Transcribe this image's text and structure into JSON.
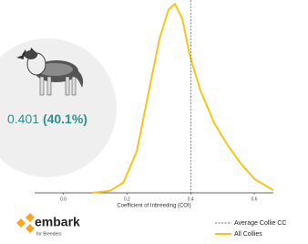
{
  "chart_data": {
    "type": "line",
    "x_label": "Coefficient of Inbreeding (COI)",
    "x": [
      0.09,
      0.146,
      0.189,
      0.231,
      0.269,
      0.303,
      0.331,
      0.351,
      0.374,
      0.397,
      0.431,
      0.474,
      0.517,
      0.56,
      0.603,
      0.66
    ],
    "series": [
      {
        "name": "All Collies",
        "color": "#f5c518",
        "values": [
          0,
          0.05,
          0.27,
          1.1,
          2.7,
          4.1,
          4.85,
          5.0,
          4.6,
          3.65,
          2.7,
          1.85,
          1.25,
          0.75,
          0.35,
          0.07
        ]
      }
    ],
    "reference_line": {
      "name": "Average Collie CC",
      "value": 0.401,
      "color": "#4a6fa5"
    },
    "xlim": [
      -0.09,
      0.66
    ],
    "ylim": [
      0,
      5.1
    ],
    "xticks": [
      {
        "value": 0,
        "label": "0.0"
      },
      0.2,
      0.4,
      0.6
    ]
  },
  "stat": {
    "value": "0.401",
    "percent": "(40.1%)"
  },
  "brand": {
    "name": "embark",
    "tagline": "for Breeders"
  }
}
